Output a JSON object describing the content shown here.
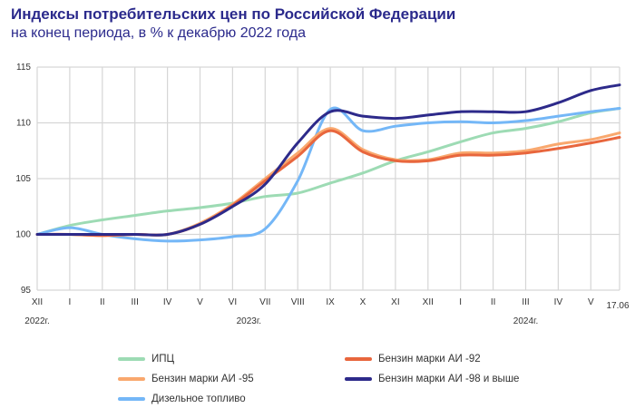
{
  "chart_data": {
    "type": "line",
    "title": "Индексы потребительских цен по Российской Федерации",
    "subtitle": "на конец периода, в % к декабрю 2022 года",
    "xlabel": "",
    "ylabel": "",
    "ylim": [
      95,
      115
    ],
    "yticks": [
      "95",
      "100",
      "105",
      "110",
      "115"
    ],
    "grid": true,
    "legend_position": "bottom",
    "categories": [
      "XII",
      "I",
      "II",
      "III",
      "IV",
      "V",
      "VI",
      "VII",
      "VIII",
      "IX",
      "X",
      "XI",
      "XII",
      "I",
      "II",
      "III",
      "IV",
      "V",
      "17.06"
    ],
    "year_labels": [
      {
        "label": "2022г.",
        "category_index": 0
      },
      {
        "label": "2023г.",
        "category_index": 6.5
      },
      {
        "label": "2024г.",
        "category_index": 15
      }
    ],
    "series": [
      {
        "name": "ИПЦ",
        "color": "#9ddbb4",
        "values": [
          100,
          100.8,
          101.3,
          101.7,
          102.1,
          102.4,
          102.8,
          103.4,
          103.7,
          104.6,
          105.5,
          106.6,
          107.4,
          108.3,
          109.1,
          109.5,
          110.1,
          110.9,
          111.3
        ]
      },
      {
        "name": "Бензин марки АИ -92",
        "color": "#e8663d",
        "values": [
          100,
          100,
          99.9,
          100,
          100,
          100.9,
          102.6,
          104.8,
          107.0,
          109.3,
          107.4,
          106.6,
          106.6,
          107.1,
          107.1,
          107.3,
          107.7,
          108.2,
          108.7
        ]
      },
      {
        "name": "Бензин марки АИ -95",
        "color": "#f9a86e",
        "values": [
          100,
          100,
          99.9,
          100,
          100,
          101.0,
          102.7,
          105.0,
          107.3,
          109.5,
          107.6,
          106.7,
          106.7,
          107.3,
          107.3,
          107.5,
          108.1,
          108.5,
          109.1
        ]
      },
      {
        "name": "Бензин марки АИ -98 и  выше",
        "color": "#2d2a8a",
        "values": [
          100,
          100,
          100,
          100,
          100,
          100.9,
          102.5,
          104.5,
          108.2,
          111.0,
          110.6,
          110.4,
          110.7,
          111.0,
          111.0,
          111.0,
          111.8,
          112.9,
          113.4
        ]
      },
      {
        "name": "Дизельное топливо",
        "color": "#74b7f7",
        "values": [
          100,
          100.6,
          100,
          99.6,
          99.4,
          99.5,
          99.8,
          100.5,
          104.8,
          111.2,
          109.3,
          109.7,
          110.0,
          110.1,
          110.0,
          110.2,
          110.6,
          111.0,
          111.3
        ]
      }
    ]
  }
}
